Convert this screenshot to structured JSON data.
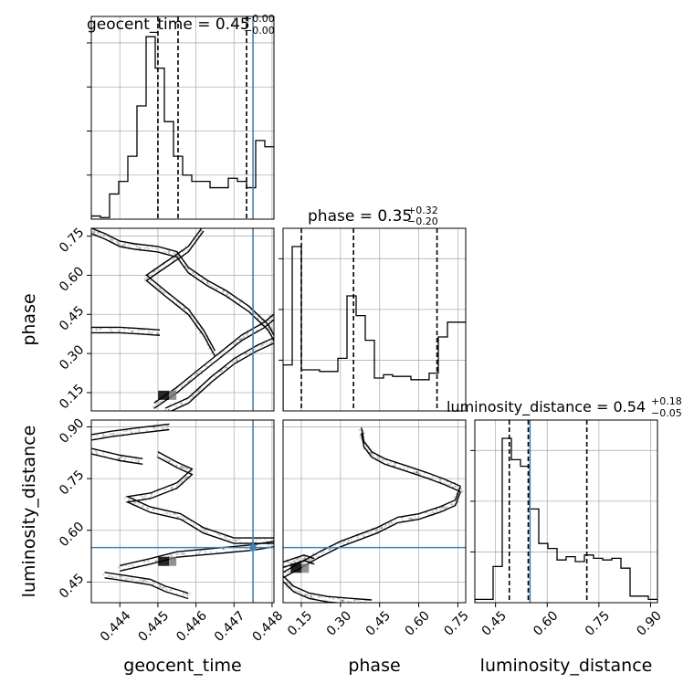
{
  "chart_data": {
    "type": "corner",
    "parameters": [
      "geocent_time",
      "phase",
      "luminosity_distance"
    ],
    "titles": [
      {
        "label": "geocent_time = 0.45",
        "sup": "+0.00",
        "sub": "−0.00"
      },
      {
        "label": "phase = 0.35",
        "sup": "+0.32",
        "sub": "−0.20"
      },
      {
        "label": "luminosity_distance = 0.54",
        "sup": "+0.18",
        "sub": "−0.05"
      }
    ],
    "truth": {
      "geocent_time": 0.4475,
      "phase": null,
      "luminosity_distance": 0.55
    },
    "ranges": {
      "geocent_time": [
        0.44325,
        0.44805
      ],
      "phase": [
        0.08,
        0.78
      ],
      "luminosity_distance": [
        0.39,
        0.92
      ]
    },
    "ticks": {
      "geocent_time": [
        "0.444",
        "0.445",
        "0.446",
        "0.447",
        "0.448"
      ],
      "phase": [
        "0.15",
        "0.30",
        "0.45",
        "0.60",
        "0.75"
      ],
      "luminosity_distance": [
        "0.45",
        "0.60",
        "0.75",
        "0.90"
      ]
    },
    "hist_geocent_time": {
      "edges_start": 0.44325,
      "bin_width": 0.00024,
      "counts": [
        1,
        0.5,
        8,
        12,
        20,
        36,
        58,
        48,
        31,
        20,
        14,
        12,
        12,
        10,
        10,
        13,
        12,
        10,
        25,
        23
      ],
      "quantiles": [
        0.445,
        0.44553,
        0.44733
      ]
    },
    "hist_phase": {
      "edges_start": 0.08,
      "bin_width": 0.035,
      "counts": [
        28,
        100,
        25,
        25,
        24,
        24,
        32,
        70,
        58,
        43,
        20,
        22,
        21,
        21,
        19,
        19,
        23,
        45,
        54,
        54
      ],
      "quantiles": [
        0.15,
        0.35,
        0.67
      ]
    },
    "hist_luminosity_distance": {
      "edges_start": 0.39,
      "bin_width": 0.0265,
      "counts": [
        2,
        2,
        22,
        100,
        87,
        83,
        57,
        36,
        33,
        26,
        28,
        25,
        29,
        27,
        26,
        27,
        21,
        4,
        4,
        2
      ],
      "quantiles": [
        0.49,
        0.545,
        0.715
      ]
    },
    "scatter_phase_vs_geocent_time": {
      "tracks": [
        [
          [
            0.44325,
            0.77
          ],
          [
            0.4436,
            0.75
          ],
          [
            0.444,
            0.72
          ],
          [
            0.4444,
            0.71
          ],
          [
            0.445,
            0.7
          ],
          [
            0.4455,
            0.68
          ],
          [
            0.4458,
            0.62
          ],
          [
            0.4463,
            0.57
          ],
          [
            0.4468,
            0.53
          ],
          [
            0.4474,
            0.47
          ],
          [
            0.4479,
            0.4
          ],
          [
            0.44805,
            0.36
          ]
        ],
        [
          [
            0.4462,
            0.78
          ],
          [
            0.4458,
            0.7
          ],
          [
            0.4452,
            0.64
          ],
          [
            0.4447,
            0.59
          ],
          [
            0.4452,
            0.53
          ],
          [
            0.4458,
            0.46
          ],
          [
            0.4462,
            0.38
          ],
          [
            0.4465,
            0.3
          ]
        ],
        [
          [
            0.44325,
            0.39
          ],
          [
            0.444,
            0.39
          ],
          [
            0.4446,
            0.385
          ],
          [
            0.44505,
            0.38
          ]
        ],
        [
          [
            0.4449,
            0.1
          ],
          [
            0.4452,
            0.13
          ],
          [
            0.4455,
            0.16
          ],
          [
            0.446,
            0.22
          ],
          [
            0.4466,
            0.29
          ],
          [
            0.4472,
            0.36
          ],
          [
            0.4478,
            0.41
          ],
          [
            0.44805,
            0.44
          ]
        ],
        [
          [
            0.4452,
            0.08
          ],
          [
            0.4458,
            0.12
          ],
          [
            0.4464,
            0.2
          ],
          [
            0.447,
            0.27
          ],
          [
            0.4476,
            0.32
          ],
          [
            0.44805,
            0.35
          ]
        ]
      ]
    },
    "scatter_luminosity_distance_vs_geocent_time": {
      "tracks": [
        [
          [
            0.44325,
            0.87
          ],
          [
            0.4438,
            0.88
          ],
          [
            0.4445,
            0.89
          ],
          [
            0.4453,
            0.9
          ]
        ],
        [
          [
            0.44325,
            0.83
          ],
          [
            0.444,
            0.81
          ],
          [
            0.4446,
            0.8
          ]
        ],
        [
          [
            0.445,
            0.82
          ],
          [
            0.4455,
            0.79
          ],
          [
            0.4459,
            0.77
          ],
          [
            0.4455,
            0.73
          ],
          [
            0.4448,
            0.7
          ],
          [
            0.4442,
            0.69
          ],
          [
            0.4448,
            0.66
          ],
          [
            0.4456,
            0.64
          ],
          [
            0.4462,
            0.6
          ],
          [
            0.447,
            0.57
          ],
          [
            0.44805,
            0.57
          ]
        ],
        [
          [
            0.4436,
            0.47
          ],
          [
            0.4442,
            0.46
          ],
          [
            0.4448,
            0.45
          ],
          [
            0.4452,
            0.43
          ],
          [
            0.4458,
            0.41
          ]
        ],
        [
          [
            0.444,
            0.49
          ],
          [
            0.4448,
            0.51
          ],
          [
            0.4455,
            0.53
          ],
          [
            0.4465,
            0.54
          ],
          [
            0.4475,
            0.55
          ],
          [
            0.44805,
            0.56
          ]
        ]
      ]
    },
    "scatter_luminosity_distance_vs_phase": {
      "tracks": [
        [
          [
            0.38,
            0.89
          ],
          [
            0.39,
            0.85
          ],
          [
            0.42,
            0.82
          ],
          [
            0.47,
            0.8
          ],
          [
            0.55,
            0.78
          ],
          [
            0.63,
            0.76
          ],
          [
            0.7,
            0.74
          ],
          [
            0.76,
            0.72
          ]
        ],
        [
          [
            0.08,
            0.47
          ],
          [
            0.15,
            0.5
          ],
          [
            0.22,
            0.53
          ],
          [
            0.3,
            0.56
          ],
          [
            0.37,
            0.58
          ],
          [
            0.44,
            0.6
          ],
          [
            0.52,
            0.63
          ],
          [
            0.6,
            0.64
          ],
          [
            0.68,
            0.66
          ],
          [
            0.74,
            0.68
          ],
          [
            0.76,
            0.72
          ]
        ],
        [
          [
            0.08,
            0.46
          ],
          [
            0.12,
            0.43
          ],
          [
            0.18,
            0.41
          ],
          [
            0.25,
            0.4
          ],
          [
            0.33,
            0.395
          ],
          [
            0.42,
            0.39
          ]
        ],
        [
          [
            0.08,
            0.5
          ],
          [
            0.12,
            0.51
          ],
          [
            0.16,
            0.52
          ],
          [
            0.2,
            0.51
          ]
        ]
      ]
    }
  }
}
